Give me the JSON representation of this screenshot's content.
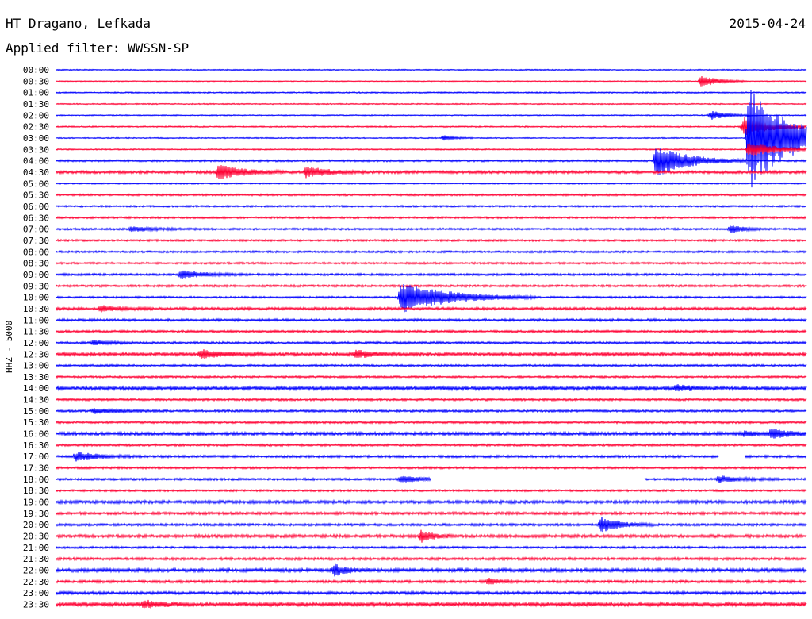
{
  "header": {
    "station": "HT Dragano, Lefkada",
    "filter": "Applied filter: WWSSN-SP",
    "date": "2015-04-24"
  },
  "colors": {
    "blue": "#0000ff",
    "red": "#ff0033"
  },
  "chart_data": {
    "type": "line",
    "title": "HT Dragano, Lefkada",
    "subtitle": "Applied filter: WWSSN-SP",
    "date": "2015-04-24",
    "ylabel": "HHZ - 5000",
    "row_labels": [
      "00:00",
      "00:30",
      "01:00",
      "01:30",
      "02:00",
      "02:30",
      "03:00",
      "03:30",
      "04:00",
      "04:30",
      "05:00",
      "05:30",
      "06:00",
      "06:30",
      "07:00",
      "07:30",
      "08:00",
      "08:30",
      "09:00",
      "09:30",
      "10:00",
      "10:30",
      "11:00",
      "11:30",
      "12:00",
      "12:30",
      "13:00",
      "13:30",
      "14:00",
      "14:30",
      "15:00",
      "15:30",
      "16:00",
      "16:30",
      "17:00",
      "17:30",
      "18:00",
      "18:30",
      "19:00",
      "19:30",
      "20:00",
      "20:30",
      "21:00",
      "21:30",
      "22:00",
      "22:30",
      "23:00",
      "23:30"
    ],
    "row_colors": [
      "blue",
      "red"
    ],
    "trace_minutes": 30,
    "noise": [
      0.5,
      0.4,
      0.6,
      0.5,
      0.5,
      0.6,
      0.5,
      0.6,
      0.9,
      1.3,
      0.6,
      0.9,
      0.8,
      0.9,
      0.9,
      0.9,
      0.9,
      0.9,
      1.0,
      1.0,
      0.9,
      1.2,
      1.1,
      1.0,
      1.0,
      1.5,
      0.9,
      0.9,
      1.6,
      1.0,
      1.0,
      1.0,
      1.5,
      1.0,
      1.1,
      1.0,
      1.0,
      0.9,
      1.4,
      1.2,
      1.1,
      1.4,
      1.0,
      1.2,
      1.6,
      1.2,
      1.3,
      1.8
    ],
    "events": [
      {
        "row": 1,
        "minute": 25.8,
        "amp": 8,
        "len": 0.6
      },
      {
        "row": 5,
        "minute": 27.5,
        "amp": 12,
        "len": 1.0
      },
      {
        "row": 6,
        "minute": 27.7,
        "amp": 70,
        "len": 1.5
      },
      {
        "row": 7,
        "minute": 27.7,
        "amp": 10,
        "len": 1.0
      },
      {
        "row": 4,
        "minute": 26.2,
        "amp": 6,
        "len": 0.6
      },
      {
        "row": 6,
        "minute": 15.5,
        "amp": 3,
        "len": 0.4
      },
      {
        "row": 8,
        "minute": 24.0,
        "amp": 20,
        "len": 1.2
      },
      {
        "row": 9,
        "minute": 6.5,
        "amp": 10,
        "len": 0.9
      },
      {
        "row": 9,
        "minute": 10.0,
        "amp": 7,
        "len": 0.8
      },
      {
        "row": 14,
        "minute": 3.0,
        "amp": 3,
        "len": 1.0
      },
      {
        "row": 14,
        "minute": 27.0,
        "amp": 5,
        "len": 0.5
      },
      {
        "row": 18,
        "minute": 5.0,
        "amp": 5,
        "len": 0.9
      },
      {
        "row": 20,
        "minute": 13.8,
        "amp": 20,
        "len": 1.8
      },
      {
        "row": 21,
        "minute": 1.8,
        "amp": 4,
        "len": 0.7
      },
      {
        "row": 24,
        "minute": 1.5,
        "amp": 3,
        "len": 0.6
      },
      {
        "row": 25,
        "minute": 5.8,
        "amp": 6,
        "len": 0.8
      },
      {
        "row": 25,
        "minute": 12.0,
        "amp": 5,
        "len": 0.6
      },
      {
        "row": 28,
        "minute": 24.8,
        "amp": 4,
        "len": 0.6
      },
      {
        "row": 30,
        "minute": 1.5,
        "amp": 3,
        "len": 1.0
      },
      {
        "row": 32,
        "minute": 28.6,
        "amp": 6,
        "len": 0.8
      },
      {
        "row": 32,
        "minute": 27.5,
        "amp": 3,
        "len": 0.5
      },
      {
        "row": 34,
        "minute": 0.8,
        "amp": 6,
        "len": 0.8
      },
      {
        "row": 36,
        "minute": 13.8,
        "amp": 4,
        "len": 1.0
      },
      {
        "row": 36,
        "minute": 26.5,
        "amp": 4,
        "len": 0.8
      },
      {
        "row": 40,
        "minute": 21.8,
        "amp": 10,
        "len": 0.7
      },
      {
        "row": 41,
        "minute": 14.6,
        "amp": 7,
        "len": 0.5
      },
      {
        "row": 44,
        "minute": 11.1,
        "amp": 7,
        "len": 0.5
      },
      {
        "row": 45,
        "minute": 17.3,
        "amp": 4,
        "len": 0.4
      },
      {
        "row": 47,
        "minute": 3.5,
        "amp": 5,
        "len": 0.6
      }
    ],
    "gaps": [
      {
        "row": 34,
        "from": 26.5,
        "to": 27.5
      },
      {
        "row": 36,
        "from": 15.0,
        "to": 23.5
      }
    ]
  }
}
